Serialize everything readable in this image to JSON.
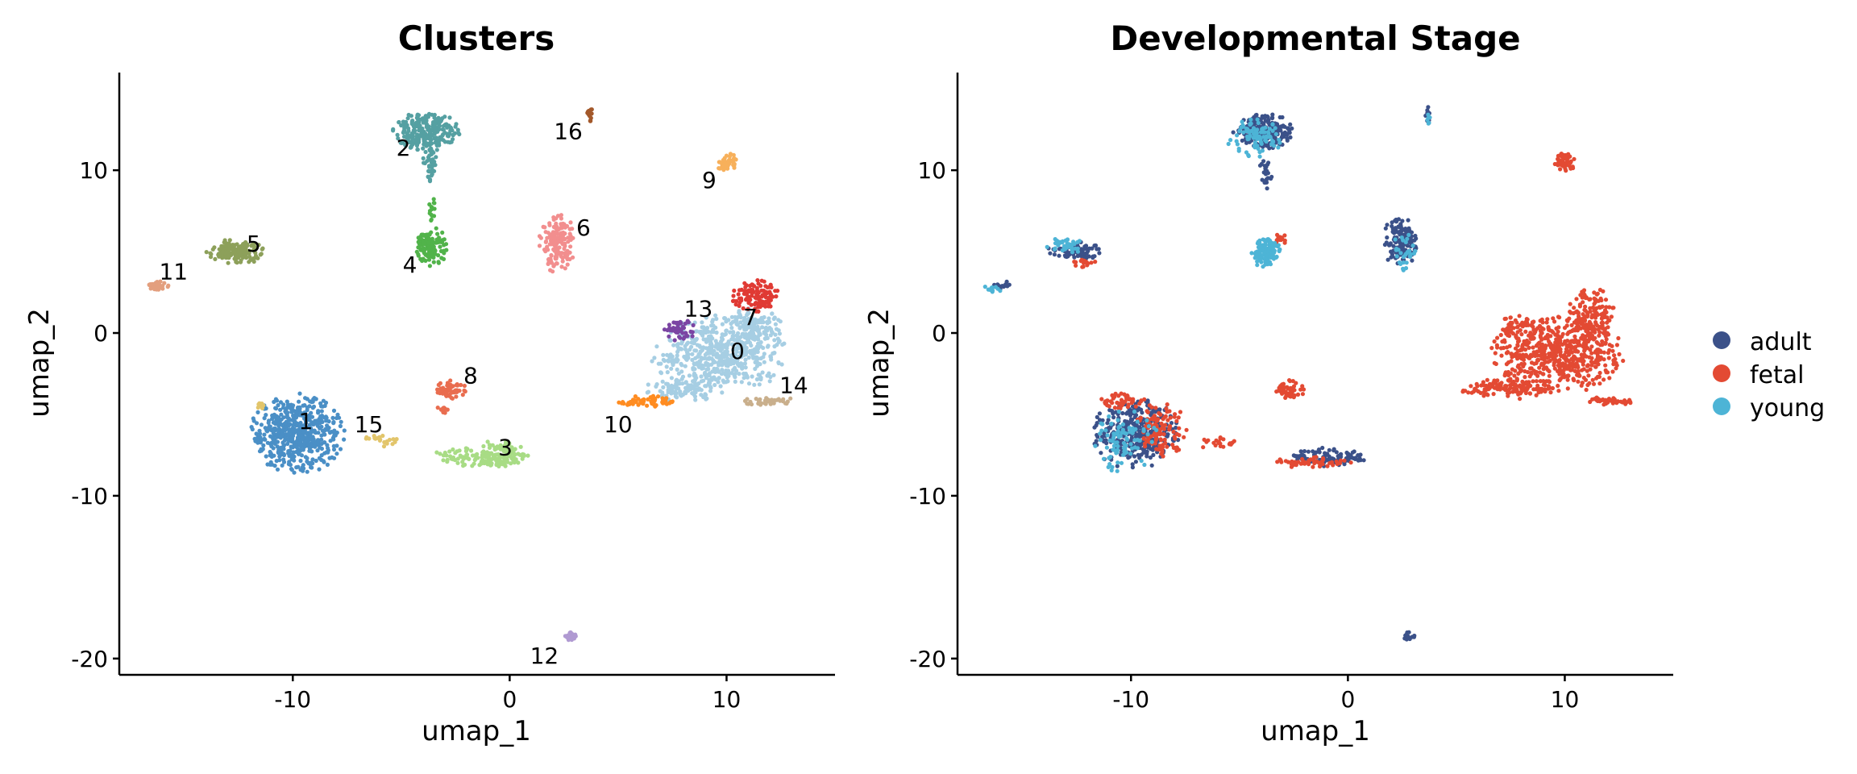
{
  "chart_data": [
    {
      "type": "scatter",
      "title": "Clusters",
      "xlabel": "umap_1",
      "ylabel": "umap_2",
      "xlim": [
        -18,
        15
      ],
      "ylim": [
        -21,
        16
      ],
      "xticks": [
        -10,
        0,
        10
      ],
      "yticks": [
        -20,
        -10,
        0,
        10
      ],
      "xtick_labels": [
        "-10",
        "0",
        "10"
      ],
      "ytick_labels": [
        "-20",
        "-10",
        "0",
        "10"
      ],
      "grid": false,
      "legend": "none",
      "series": [
        {
          "name": "0",
          "color": "#a6cee3",
          "label_at": [
            10.5,
            -1.1
          ],
          "blobs": [
            {
              "cx": 9.7,
              "cy": -1.3,
              "rx": 3.2,
              "ry": 2.4,
              "n": 520
            },
            {
              "cx": 11.2,
              "cy": 0.3,
              "rx": 1.4,
              "ry": 1.3,
              "n": 120
            },
            {
              "cx": 8.0,
              "cy": -3.5,
              "rx": 1.9,
              "ry": 0.7,
              "n": 90
            }
          ]
        },
        {
          "name": "1",
          "color": "#4a8fc6",
          "label_at": [
            -9.4,
            -5.4
          ],
          "blobs": [
            {
              "cx": -9.8,
              "cy": -6.2,
              "rx": 2.2,
              "ry": 2.5,
              "n": 560
            }
          ]
        },
        {
          "name": "2",
          "color": "#55a0a2",
          "label_at": [
            -4.9,
            11.4
          ],
          "blobs": [
            {
              "cx": -3.8,
              "cy": 12.4,
              "rx": 1.6,
              "ry": 1.2,
              "n": 260
            },
            {
              "cx": -3.7,
              "cy": 10.3,
              "rx": 0.4,
              "ry": 1.2,
              "n": 40
            }
          ]
        },
        {
          "name": "3",
          "color": "#a8dc85",
          "label_at": [
            -0.2,
            -7.0
          ],
          "blobs": [
            {
              "cx": -1.4,
              "cy": -7.6,
              "rx": 2.4,
              "ry": 0.6,
              "n": 110
            },
            {
              "cx": -0.4,
              "cy": -7.4,
              "rx": 1.1,
              "ry": 0.9,
              "n": 80
            }
          ]
        },
        {
          "name": "4",
          "color": "#51b34a",
          "label_at": [
            -4.6,
            4.2
          ],
          "blobs": [
            {
              "cx": -3.6,
              "cy": 5.3,
              "rx": 0.7,
              "ry": 1.3,
              "n": 130
            },
            {
              "cx": -3.6,
              "cy": 7.6,
              "rx": 0.15,
              "ry": 1.0,
              "n": 15
            }
          ]
        },
        {
          "name": "5",
          "color": "#8da05a",
          "label_at": [
            -11.8,
            5.5
          ],
          "blobs": [
            {
              "cx": -12.6,
              "cy": 5.0,
              "rx": 1.4,
              "ry": 0.8,
              "n": 150
            }
          ]
        },
        {
          "name": "6",
          "color": "#f28e8e",
          "label_at": [
            3.4,
            6.5
          ],
          "blobs": [
            {
              "cx": 2.2,
              "cy": 5.5,
              "rx": 0.9,
              "ry": 1.8,
              "n": 160
            }
          ]
        },
        {
          "name": "7",
          "color": "#e03a34",
          "label_at": [
            11.1,
            1.0
          ],
          "blobs": [
            {
              "cx": 11.3,
              "cy": 2.3,
              "rx": 1.1,
              "ry": 1.0,
              "n": 110
            }
          ]
        },
        {
          "name": "8",
          "color": "#e96d4f",
          "label_at": [
            -1.8,
            -2.6
          ],
          "blobs": [
            {
              "cx": -2.7,
              "cy": -3.5,
              "rx": 0.7,
              "ry": 0.6,
              "n": 55
            },
            {
              "cx": -3.1,
              "cy": -4.7,
              "rx": 0.4,
              "ry": 0.3,
              "n": 10
            }
          ]
        },
        {
          "name": "9",
          "color": "#f7b05b",
          "label_at": [
            9.2,
            9.4
          ],
          "blobs": [
            {
              "cx": 10.0,
              "cy": 10.5,
              "rx": 0.5,
              "ry": 0.6,
              "n": 45
            }
          ]
        },
        {
          "name": "10",
          "color": "#ff8c21",
          "label_at": [
            5.0,
            -5.6
          ],
          "blobs": [
            {
              "cx": 6.3,
              "cy": -4.2,
              "rx": 1.3,
              "ry": 0.35,
              "n": 55
            }
          ]
        },
        {
          "name": "11",
          "color": "#e39f7e",
          "label_at": [
            -15.5,
            3.8
          ],
          "blobs": [
            {
              "cx": -16.2,
              "cy": 2.9,
              "rx": 0.5,
              "ry": 0.3,
              "n": 40
            }
          ]
        },
        {
          "name": "12",
          "color": "#b09ad2",
          "label_at": [
            1.6,
            -19.8
          ],
          "blobs": [
            {
              "cx": 2.8,
              "cy": -18.6,
              "rx": 0.35,
              "ry": 0.3,
              "n": 25
            }
          ]
        },
        {
          "name": "13",
          "color": "#7b45a3",
          "label_at": [
            8.7,
            1.5
          ],
          "blobs": [
            {
              "cx": 7.8,
              "cy": 0.2,
              "rx": 0.8,
              "ry": 0.7,
              "n": 45
            }
          ]
        },
        {
          "name": "14",
          "color": "#c9af8c",
          "label_at": [
            13.1,
            -3.2
          ],
          "blobs": [
            {
              "cx": 12.0,
              "cy": -4.2,
              "rx": 1.2,
              "ry": 0.3,
              "n": 40
            }
          ]
        },
        {
          "name": "15",
          "color": "#e2c56b",
          "label_at": [
            -6.5,
            -5.6
          ],
          "blobs": [
            {
              "cx": -5.9,
              "cy": -6.6,
              "rx": 0.9,
              "ry": 0.4,
              "n": 20
            },
            {
              "cx": -11.5,
              "cy": -4.5,
              "rx": 0.3,
              "ry": 0.2,
              "n": 8
            }
          ]
        },
        {
          "name": "16",
          "color": "#a3582a",
          "label_at": [
            2.7,
            12.4
          ],
          "blobs": [
            {
              "cx": 3.7,
              "cy": 13.4,
              "rx": 0.15,
              "ry": 0.6,
              "n": 15
            }
          ]
        }
      ]
    },
    {
      "type": "scatter",
      "title": "Developmental Stage",
      "xlabel": "umap_1",
      "ylabel": "umap_2",
      "xlim": [
        -18,
        15
      ],
      "ylim": [
        -21,
        16
      ],
      "xticks": [
        -10,
        0,
        10
      ],
      "yticks": [
        -20,
        -10,
        0,
        10
      ],
      "xtick_labels": [
        "-10",
        "0",
        "10"
      ],
      "ytick_labels": [
        "-20",
        "-10",
        "0",
        "10"
      ],
      "grid": false,
      "legend": "right",
      "series": [
        {
          "name": "adult",
          "color": "#3b5189",
          "blobs": [
            {
              "cx": -9.8,
              "cy": -6.2,
              "rx": 2.0,
              "ry": 2.3,
              "n": 330
            },
            {
              "cx": -3.9,
              "cy": 12.4,
              "rx": 1.4,
              "ry": 1.1,
              "n": 230
            },
            {
              "cx": -3.8,
              "cy": 9.8,
              "rx": 0.3,
              "ry": 1.0,
              "n": 25
            },
            {
              "cx": 2.4,
              "cy": 5.6,
              "rx": 0.8,
              "ry": 1.6,
              "n": 120
            },
            {
              "cx": -12.6,
              "cy": 5.0,
              "rx": 1.3,
              "ry": 0.6,
              "n": 80
            },
            {
              "cx": -0.8,
              "cy": -7.6,
              "rx": 1.8,
              "ry": 0.6,
              "n": 100
            },
            {
              "cx": -16.0,
              "cy": 2.9,
              "rx": 0.5,
              "ry": 0.3,
              "n": 18
            },
            {
              "cx": 2.8,
              "cy": -18.6,
              "rx": 0.3,
              "ry": 0.3,
              "n": 15
            },
            {
              "cx": 3.7,
              "cy": 13.4,
              "rx": 0.12,
              "ry": 0.5,
              "n": 10
            }
          ]
        },
        {
          "name": "fetal",
          "color": "#e34a33",
          "blobs": [
            {
              "cx": 9.7,
              "cy": -1.3,
              "rx": 3.2,
              "ry": 2.4,
              "n": 560
            },
            {
              "cx": 11.2,
              "cy": 1.0,
              "rx": 1.2,
              "ry": 1.8,
              "n": 150
            },
            {
              "cx": 7.5,
              "cy": -3.4,
              "rx": 2.3,
              "ry": 0.7,
              "n": 120
            },
            {
              "cx": 12.0,
              "cy": -4.2,
              "rx": 1.2,
              "ry": 0.3,
              "n": 40
            },
            {
              "cx": 7.8,
              "cy": 0.4,
              "rx": 0.8,
              "ry": 0.8,
              "n": 40
            },
            {
              "cx": -8.6,
              "cy": -6.0,
              "rx": 1.2,
              "ry": 1.8,
              "n": 110
            },
            {
              "cx": -10.4,
              "cy": -4.2,
              "rx": 1.2,
              "ry": 0.5,
              "n": 50
            },
            {
              "cx": 10.0,
              "cy": 10.5,
              "rx": 0.5,
              "ry": 0.6,
              "n": 45
            },
            {
              "cx": -2.7,
              "cy": -3.5,
              "rx": 0.7,
              "ry": 0.6,
              "n": 50
            },
            {
              "cx": -1.6,
              "cy": -7.9,
              "rx": 1.8,
              "ry": 0.4,
              "n": 50
            },
            {
              "cx": -5.9,
              "cy": -6.8,
              "rx": 1.0,
              "ry": 0.4,
              "n": 20
            },
            {
              "cx": -3.1,
              "cy": 5.8,
              "rx": 0.3,
              "ry": 0.4,
              "n": 15
            },
            {
              "cx": -12.2,
              "cy": 4.3,
              "rx": 0.8,
              "ry": 0.3,
              "n": 15
            }
          ]
        },
        {
          "name": "young",
          "color": "#4db4d6",
          "blobs": [
            {
              "cx": -3.8,
              "cy": 5.0,
              "rx": 0.7,
              "ry": 1.0,
              "n": 110
            },
            {
              "cx": -4.3,
              "cy": 12.0,
              "rx": 1.3,
              "ry": 1.2,
              "n": 90
            },
            {
              "cx": -10.3,
              "cy": -6.6,
              "rx": 1.6,
              "ry": 2.0,
              "n": 90
            },
            {
              "cx": -13.0,
              "cy": 5.4,
              "rx": 1.0,
              "ry": 0.5,
              "n": 40
            },
            {
              "cx": -16.3,
              "cy": 2.7,
              "rx": 0.5,
              "ry": 0.3,
              "n": 12
            },
            {
              "cx": 2.6,
              "cy": 5.0,
              "rx": 0.6,
              "ry": 1.2,
              "n": 30
            },
            {
              "cx": 3.7,
              "cy": 13.2,
              "rx": 0.12,
              "ry": 0.4,
              "n": 6
            }
          ]
        }
      ]
    }
  ]
}
